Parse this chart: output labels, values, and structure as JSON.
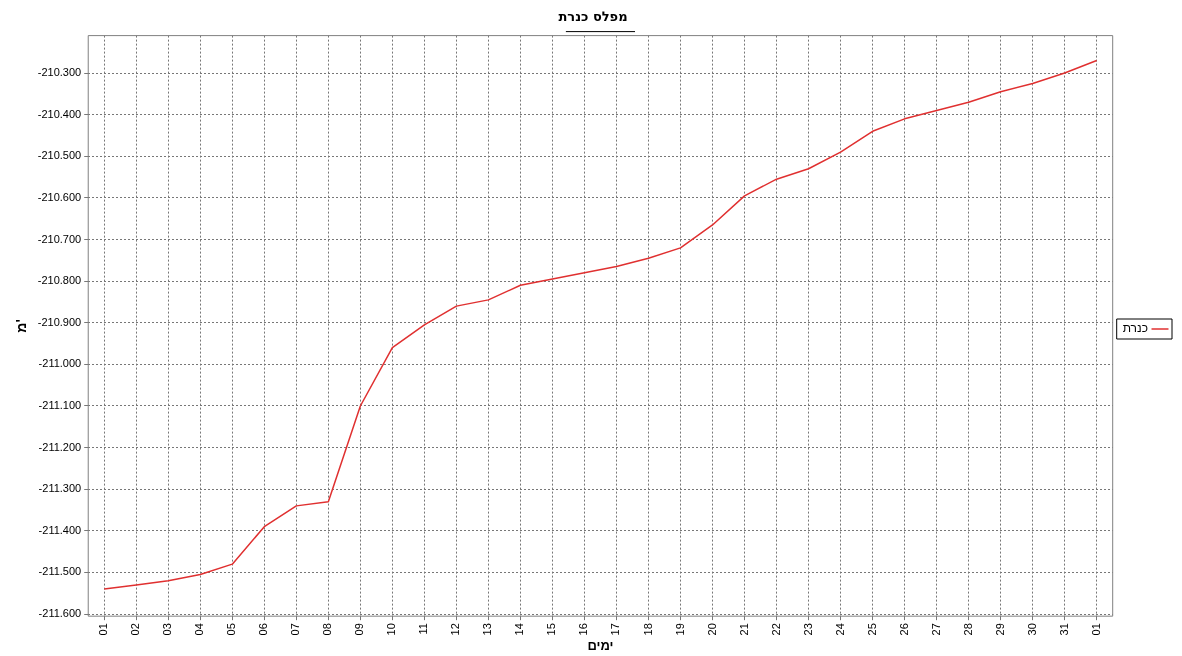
{
  "chart_data": {
    "type": "line",
    "title": "מפלס כנרת",
    "xlabel": "ימים",
    "ylabel": "מ'",
    "categories": [
      "01",
      "02",
      "03",
      "04",
      "05",
      "06",
      "07",
      "08",
      "09",
      "10",
      "11",
      "12",
      "13",
      "14",
      "15",
      "16",
      "17",
      "18",
      "19",
      "20",
      "21",
      "22",
      "23",
      "24",
      "25",
      "26",
      "27",
      "28",
      "29",
      "30",
      "31",
      "01"
    ],
    "series": [
      {
        "name": "כנרת",
        "color": "#e03030",
        "values": [
          -211.54,
          -211.53,
          -211.52,
          -211.505,
          -211.48,
          -211.39,
          -211.34,
          -211.33,
          -211.1,
          -210.96,
          -210.905,
          -210.86,
          -210.845,
          -210.81,
          -210.795,
          -210.78,
          -210.765,
          -210.745,
          -210.72,
          -210.665,
          -210.595,
          -210.555,
          -210.53,
          -210.49,
          -210.44,
          -210.41,
          -210.39,
          -210.37,
          -210.345,
          -210.325,
          -210.3,
          -210.27
        ]
      }
    ],
    "ylim": [
      -211.605,
      -210.21
    ],
    "yticks": [
      {
        "value": -211.6,
        "label": "-211.600"
      },
      {
        "value": -211.5,
        "label": "-211.500"
      },
      {
        "value": -211.4,
        "label": "-211.400"
      },
      {
        "value": -211.3,
        "label": "-211.300"
      },
      {
        "value": -211.2,
        "label": "-211.200"
      },
      {
        "value": -211.1,
        "label": "-211.100"
      },
      {
        "value": -211.0,
        "label": "-211.000"
      },
      {
        "value": -210.9,
        "label": "-210.900"
      },
      {
        "value": -210.8,
        "label": "-210.800"
      },
      {
        "value": -210.7,
        "label": "-210.700"
      },
      {
        "value": -210.6,
        "label": "-210.600"
      },
      {
        "value": -210.5,
        "label": "-210.500"
      },
      {
        "value": -210.4,
        "label": "-210.400"
      },
      {
        "value": -210.3,
        "label": "-210.300"
      }
    ],
    "grid": true,
    "legend": "right",
    "marker": "none",
    "line_style": "solid"
  }
}
